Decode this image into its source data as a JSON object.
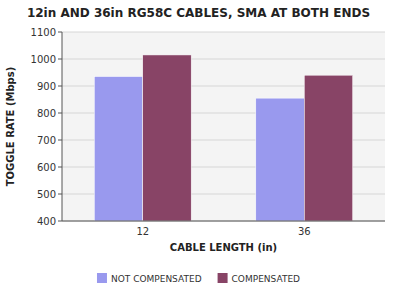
{
  "chart_data": {
    "type": "bar",
    "title": "12in AND 36in RG58C CABLES, SMA AT BOTH ENDS",
    "xlabel": "CABLE LENGTH (in)",
    "ylabel": "TOGGLE RATE (Mbps)",
    "categories": [
      "12",
      "36"
    ],
    "series": [
      {
        "name": "NOT COMPENSATED",
        "color": "#9999EE",
        "values": [
          935,
          855
        ]
      },
      {
        "name": "COMPENSATED",
        "color": "#884466",
        "values": [
          1015,
          940
        ]
      }
    ],
    "ylim": [
      400,
      1100
    ],
    "yticks": [
      400,
      500,
      600,
      700,
      800,
      900,
      1000,
      1100
    ],
    "grid": true,
    "legend": "bottom"
  }
}
